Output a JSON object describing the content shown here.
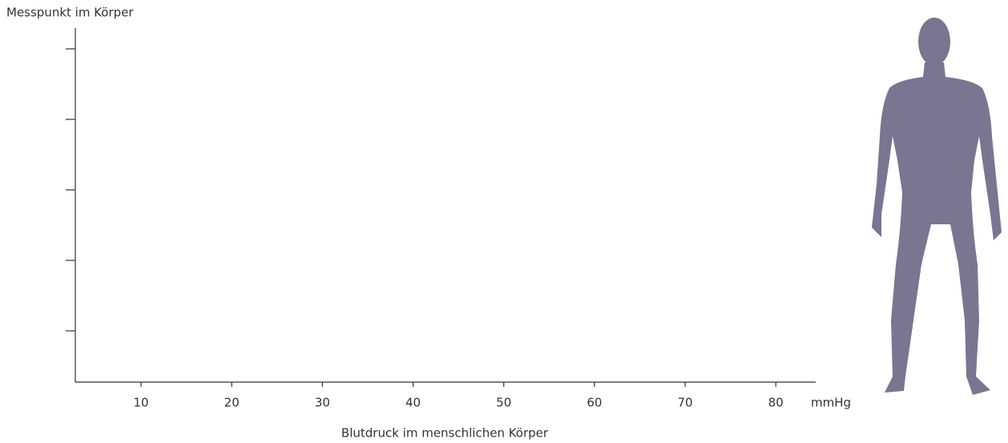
{
  "chart_data": {
    "type": "scatter",
    "y_label": "Messpunkt im Körper",
    "x_label": "Blutdruck im menschlichen Körper",
    "x_unit": "mmHg",
    "categories": [
      null,
      null,
      null,
      null,
      null
    ],
    "xlim": [
      2.75,
      84.4
    ],
    "xticks": [
      10,
      20,
      30,
      40,
      50,
      60,
      70,
      80
    ],
    "series": []
  }
}
